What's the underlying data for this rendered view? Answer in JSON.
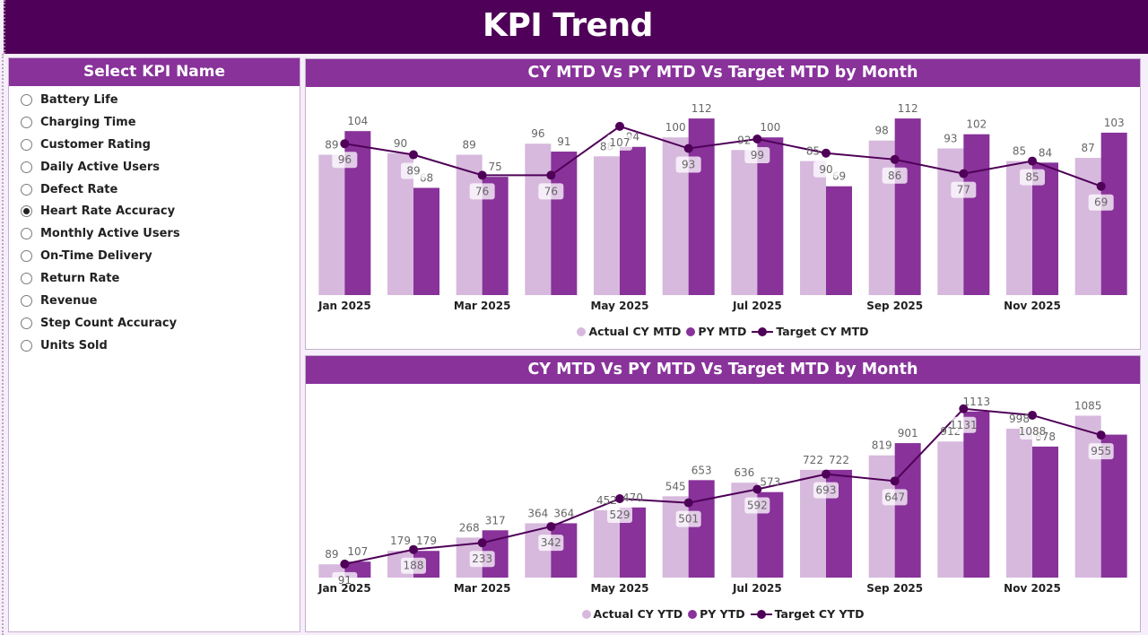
{
  "header": {
    "title": "KPI Trend"
  },
  "slicer": {
    "title": "Select KPI Name",
    "items": [
      {
        "label": "Battery Life",
        "selected": false
      },
      {
        "label": "Charging Time",
        "selected": false
      },
      {
        "label": "Customer Rating",
        "selected": false
      },
      {
        "label": "Daily Active Users",
        "selected": false
      },
      {
        "label": "Defect Rate",
        "selected": false
      },
      {
        "label": "Heart Rate Accuracy",
        "selected": true
      },
      {
        "label": "Monthly Active Users",
        "selected": false
      },
      {
        "label": "On-Time Delivery",
        "selected": false
      },
      {
        "label": "Return Rate",
        "selected": false
      },
      {
        "label": "Revenue",
        "selected": false
      },
      {
        "label": "Step Count Accuracy",
        "selected": false
      },
      {
        "label": "Units Sold",
        "selected": false
      }
    ]
  },
  "colors": {
    "actual": "#d7b9dd",
    "py": "#88329a",
    "target": "#4f0058",
    "header": "#4f0058",
    "panel_head": "#88329a"
  },
  "chart_data": [
    {
      "type": "bar",
      "title": "CY MTD Vs PY MTD Vs Target MTD by Month",
      "xlabel": "",
      "ylabel": "",
      "categories": [
        "Jan 2025",
        "Feb 2025",
        "Mar 2025",
        "Apr 2025",
        "May 2025",
        "Jun 2025",
        "Jul 2025",
        "Aug 2025",
        "Sep 2025",
        "Oct 2025",
        "Nov 2025",
        "Dec 2025"
      ],
      "x_tick_labels": [
        "Jan 2025",
        "",
        "Mar 2025",
        "",
        "May 2025",
        "",
        "Jul 2025",
        "",
        "Sep 2025",
        "",
        "Nov 2025",
        ""
      ],
      "ylim": [
        0,
        124
      ],
      "grid": false,
      "legend_position": "bottom-center",
      "series": [
        {
          "name": "Actual CY MTD",
          "kind": "bar",
          "values": [
            89,
            90,
            89,
            96,
            88,
            100,
            92,
            85,
            98,
            93,
            85,
            87
          ]
        },
        {
          "name": "PY MTD",
          "kind": "bar",
          "values": [
            104,
            68,
            75,
            91,
            94,
            112,
            100,
            69,
            112,
            102,
            84,
            103
          ]
        },
        {
          "name": "Target CY MTD",
          "kind": "line",
          "values": [
            96,
            89,
            76,
            76,
            107,
            93,
            99,
            90,
            86,
            77,
            85,
            69
          ]
        }
      ]
    },
    {
      "type": "bar",
      "title": "CY MTD Vs PY MTD Vs Target MTD by Month",
      "xlabel": "",
      "ylabel": "",
      "categories": [
        "Jan 2025",
        "Feb 2025",
        "Mar 2025",
        "Apr 2025",
        "May 2025",
        "Jun 2025",
        "Jul 2025",
        "Aug 2025",
        "Sep 2025",
        "Oct 2025",
        "Nov 2025",
        "Dec 2025"
      ],
      "x_tick_labels": [
        "Jan 2025",
        "",
        "Mar 2025",
        "",
        "May 2025",
        "",
        "Jul 2025",
        "",
        "Sep 2025",
        "",
        "Nov 2025",
        ""
      ],
      "ylim": [
        0,
        1250
      ],
      "grid": false,
      "legend_position": "bottom-center",
      "series": [
        {
          "name": "Actual CY YTD",
          "kind": "bar",
          "values": [
            89,
            179,
            268,
            364,
            452,
            545,
            636,
            722,
            819,
            912,
            998,
            1085
          ]
        },
        {
          "name": "PY YTD",
          "kind": "bar",
          "values": [
            107,
            179,
            317,
            364,
            470,
            653,
            573,
            722,
            901,
            1113,
            878,
            958
          ],
          "unlabeled": [
            11
          ]
        },
        {
          "name": "Target CY YTD",
          "kind": "line",
          "values": [
            91,
            188,
            233,
            342,
            529,
            501,
            592,
            693,
            647,
            1131,
            1088,
            955
          ]
        }
      ]
    }
  ]
}
